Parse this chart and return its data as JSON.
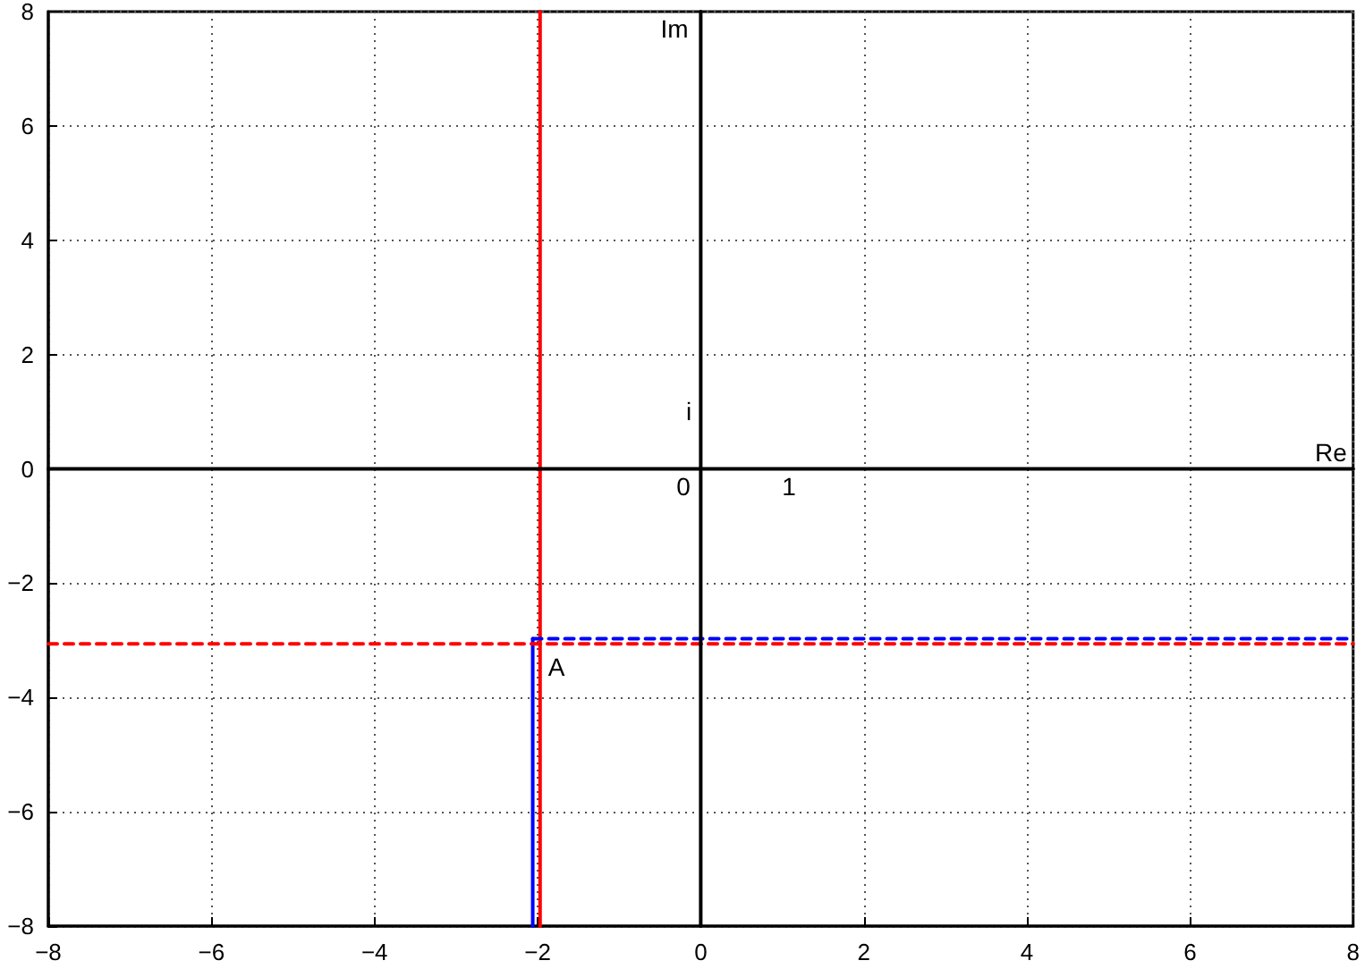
{
  "chart_data": {
    "type": "line",
    "xlim": [
      -8,
      8
    ],
    "ylim": [
      -8,
      8
    ],
    "xticks": [
      -8,
      -6,
      -4,
      -2,
      0,
      2,
      4,
      6,
      8
    ],
    "yticks": [
      -8,
      -6,
      -4,
      -2,
      0,
      2,
      4,
      6,
      8
    ],
    "grid": true,
    "marker": "none",
    "series": [
      {
        "color": "#ff0000",
        "x": [
          -1.97,
          -1.97
        ],
        "values": [
          -8,
          8
        ],
        "line_style": "solid"
      },
      {
        "color": "#0000ff",
        "x": [
          -2.06,
          -2.06
        ],
        "values": [
          -8,
          -2.97
        ],
        "line_style": "solid"
      },
      {
        "color": "#ff0000",
        "x": [
          -8,
          8
        ],
        "values": [
          -3.06,
          -3.06
        ],
        "line_style": "dashed"
      },
      {
        "color": "#0000ff",
        "x": [
          -2.06,
          8
        ],
        "values": [
          -2.97,
          -2.97
        ],
        "line_style": "dashed"
      },
      {
        "color": "#000000",
        "x": [
          0,
          0
        ],
        "values": [
          -8,
          8
        ],
        "line_style": "solid"
      },
      {
        "color": "#000000",
        "x": [
          -8,
          8
        ],
        "values": [
          0,
          0
        ],
        "line_style": "solid"
      }
    ],
    "annotations": [
      "Im",
      "Re",
      "i",
      "0",
      "1",
      "A"
    ]
  }
}
